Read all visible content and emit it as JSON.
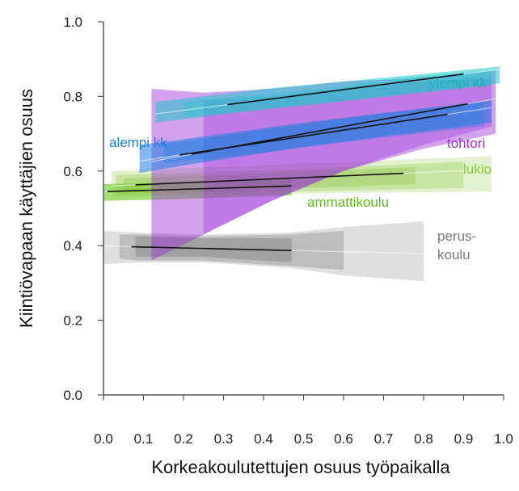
{
  "chart_data": {
    "type": "line",
    "title": "",
    "xlabel": "Korkeakoulutettujen osuus työpaikalla",
    "ylabel": "Kiintiövapaan käyttäjien osuus",
    "xlim": [
      0,
      1
    ],
    "ylim": [
      0,
      1
    ],
    "xticks": [
      "0.0",
      "0.1",
      "0.2",
      "0.3",
      "0.4",
      "0.5",
      "0.6",
      "0.7",
      "0.8",
      "0.9",
      "1.0"
    ],
    "yticks": [
      "0.0",
      "0.2",
      "0.4",
      "0.6",
      "0.8",
      "1.0"
    ],
    "grid": false,
    "legend": "inline labels",
    "series": [
      {
        "name": "perus- koulu",
        "label_lines": [
          "perus-",
          "koulu"
        ],
        "color": "#7f7f7f",
        "line_x": [
          0.07,
          0.47
        ],
        "line_y": [
          0.397,
          0.387
        ],
        "bands": [
          {
            "x": [
              0.0,
              0.08,
              0.25,
              0.47,
              0.6,
              0.8
            ],
            "upper": [
              0.44,
              0.435,
              0.43,
              0.435,
              0.45,
              0.465
            ],
            "lower": [
              0.35,
              0.355,
              0.355,
              0.34,
              0.32,
              0.305
            ],
            "opacity": 0.25
          },
          {
            "x": [
              0.04,
              0.08,
              0.25,
              0.47,
              0.6
            ],
            "upper": [
              0.43,
              0.43,
              0.425,
              0.43,
              0.44
            ],
            "lower": [
              0.365,
              0.36,
              0.36,
              0.345,
              0.335
            ],
            "opacity": 0.35
          },
          {
            "x": [
              0.08,
              0.25,
              0.47
            ],
            "upper": [
              0.425,
              0.42,
              0.42
            ],
            "lower": [
              0.37,
              0.37,
              0.355
            ],
            "opacity": 0.45
          }
        ]
      },
      {
        "name": "ammattikoulu",
        "color": "#66cc1a",
        "line_x": [
          0.01,
          0.47
        ],
        "line_y": [
          0.545,
          0.56
        ],
        "bands": [
          {
            "x": [
              0.0,
              0.2,
              0.47
            ],
            "upper": [
              0.565,
              0.57,
              0.58
            ],
            "lower": [
              0.52,
              0.525,
              0.535
            ],
            "opacity": 0.6
          }
        ]
      },
      {
        "name": "lukio",
        "color": "#8cc63f",
        "line_x": [
          0.08,
          0.75
        ],
        "line_y": [
          0.563,
          0.594
        ],
        "bands": [
          {
            "x": [
              0.02,
              0.5,
              0.97
            ],
            "upper": [
              0.6,
              0.62,
              0.64
            ],
            "lower": [
              0.53,
              0.54,
              0.545
            ],
            "opacity": 0.25
          },
          {
            "x": [
              0.03,
              0.5,
              0.9
            ],
            "upper": [
              0.59,
              0.605,
              0.625
            ],
            "lower": [
              0.535,
              0.545,
              0.555
            ],
            "opacity": 0.3
          },
          {
            "x": [
              0.05,
              0.4,
              0.78
            ],
            "upper": [
              0.58,
              0.595,
              0.61
            ],
            "lower": [
              0.54,
              0.55,
              0.565
            ],
            "opacity": 0.35
          }
        ]
      },
      {
        "name": "tohtori",
        "color": "#9b30d8",
        "line_x": [
          0.22,
          0.91
        ],
        "line_y": [
          0.645,
          0.78
        ],
        "bands": [
          {
            "x": [
              0.12,
              0.25,
              0.42,
              0.6,
              0.8,
              0.98
            ],
            "upper": [
              0.82,
              0.81,
              0.82,
              0.84,
              0.85,
              0.87
            ],
            "lower": [
              0.36,
              0.43,
              0.52,
              0.6,
              0.66,
              0.7
            ],
            "opacity": 0.45
          },
          {
            "x": [
              0.25,
              0.42,
              0.6,
              0.8,
              0.97
            ],
            "upper": [
              0.79,
              0.8,
              0.82,
              0.84,
              0.85
            ],
            "lower": [
              0.43,
              0.52,
              0.6,
              0.67,
              0.72
            ],
            "opacity": 0.35
          }
        ]
      },
      {
        "name": "alempi kk",
        "color": "#1e7fe0",
        "line_x": [
          0.19,
          0.86
        ],
        "line_y": [
          0.643,
          0.752
        ],
        "bands": [
          {
            "x": [
              0.09,
              0.2,
              0.5,
              0.97
            ],
            "upper": [
              0.67,
              0.685,
              0.73,
              0.79
            ],
            "lower": [
              0.595,
              0.615,
              0.665,
              0.73
            ],
            "opacity": 0.55
          },
          {
            "x": [
              0.15,
              0.4,
              0.7,
              0.95
            ],
            "upper": [
              0.672,
              0.71,
              0.755,
              0.785
            ],
            "lower": [
              0.622,
              0.65,
              0.69,
              0.72
            ],
            "opacity": 0.35
          }
        ]
      },
      {
        "name": "ylempi kk",
        "color": "#1ec8c8",
        "line_x": [
          0.31,
          0.9
        ],
        "line_y": [
          0.778,
          0.86
        ],
        "bands": [
          {
            "x": [
              0.13,
              0.4,
              0.7,
              0.99
            ],
            "upper": [
              0.785,
              0.82,
              0.85,
              0.88
            ],
            "lower": [
              0.73,
              0.765,
              0.8,
              0.835
            ],
            "opacity": 0.55
          },
          {
            "x": [
              0.2,
              0.5,
              0.8,
              0.97
            ],
            "upper": [
              0.785,
              0.815,
              0.855,
              0.87
            ],
            "lower": [
              0.745,
              0.775,
              0.81,
              0.83
            ],
            "opacity": 0.35
          }
        ]
      }
    ]
  }
}
